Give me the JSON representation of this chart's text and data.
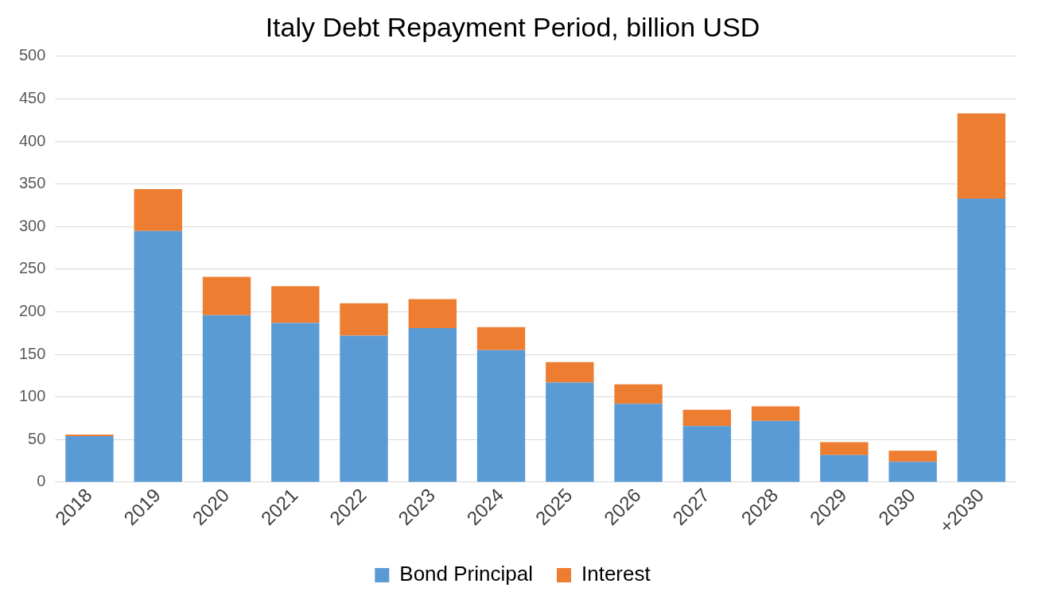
{
  "chart_data": {
    "type": "bar",
    "title": "Italy Debt Repayment Period, billion USD",
    "categories": [
      "2018",
      "2019",
      "2020",
      "2021",
      "2022",
      "2023",
      "2024",
      "2025",
      "2026",
      "2027",
      "2028",
      "2029",
      "2030",
      "+2030"
    ],
    "stacked": true,
    "series": [
      {
        "name": "Bond Principal",
        "color": "#5b9bd5",
        "values": [
          54,
          295,
          196,
          187,
          172,
          181,
          155,
          117,
          92,
          66,
          72,
          32,
          24,
          333
        ]
      },
      {
        "name": "Interest",
        "color": "#ed7d31",
        "values": [
          2,
          49,
          45,
          43,
          38,
          34,
          27,
          24,
          23,
          19,
          17,
          15,
          13,
          100
        ]
      }
    ],
    "ylim": [
      0,
      500
    ],
    "yticks": [
      0,
      50,
      100,
      150,
      200,
      250,
      300,
      350,
      400,
      450,
      500
    ],
    "grid": "y",
    "legend": "bottom"
  }
}
